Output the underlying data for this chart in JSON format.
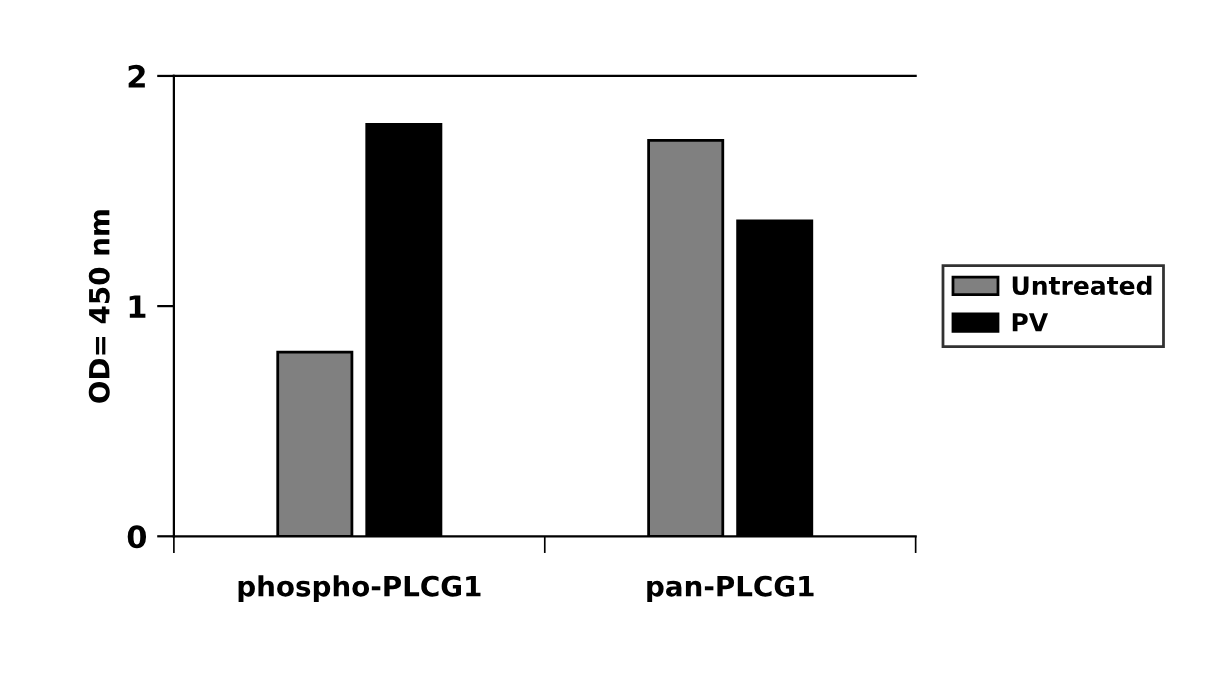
{
  "chart_data": {
    "type": "bar",
    "ylabel": "OD= 450 nm",
    "categories": [
      "phospho-PLCG1",
      "pan-PLCG1"
    ],
    "series": [
      {
        "name": "Untreated",
        "color": "#808080",
        "values": [
          0.8,
          1.72
        ]
      },
      {
        "name": "PV",
        "color": "#000000",
        "values": [
          1.79,
          1.37
        ]
      }
    ],
    "ylim": [
      0,
      2
    ],
    "yticks": [
      0,
      1,
      2
    ],
    "grid": false,
    "legend": "right"
  }
}
